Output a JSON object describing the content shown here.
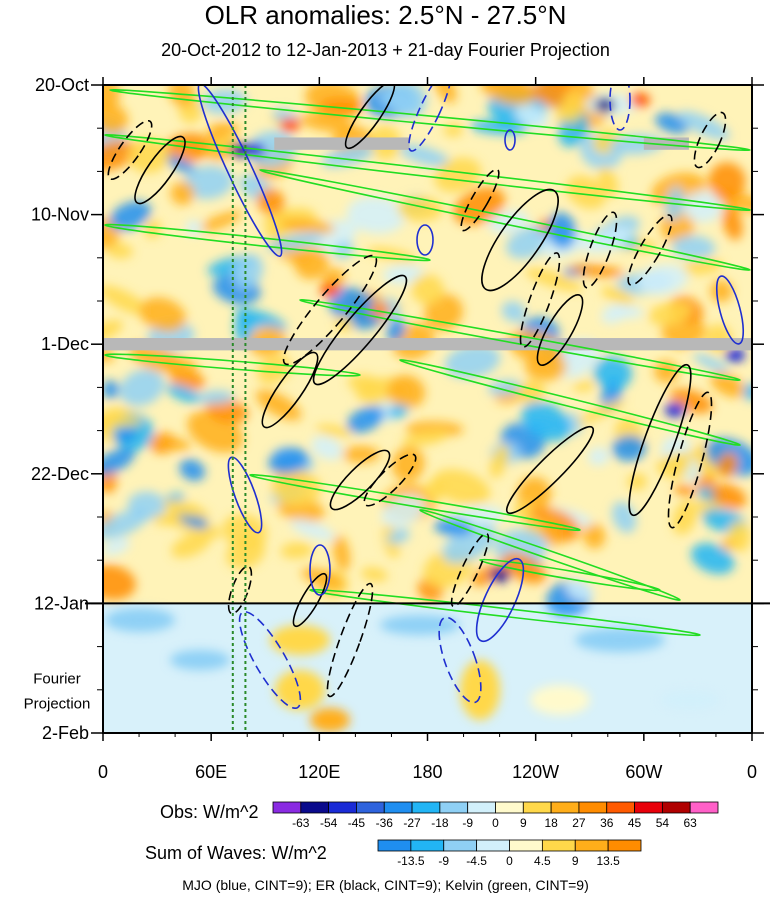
{
  "title": "OLR anomalies: 2.5°N - 27.5°N",
  "subtitle": "20-Oct-2012 to 12-Jan-2013 + 21-day Fourier Projection",
  "footer": "MJO (blue, CINT=9); ER (black, CINT=9); Kelvin (green, CINT=9)",
  "projection_label": [
    "Fourier",
    "Projection"
  ],
  "colors": {
    "mjo": "#1f2fd0",
    "er": "#000000",
    "kelvin": "#22dd22",
    "missing": "#b8b8b8",
    "dotted_lines": "#2a8a2a"
  },
  "chart_data": {
    "type": "heatmap",
    "description_kind": "Hovmoller longitude-time diagram",
    "xlabel": "",
    "ylabel": "",
    "x_ticks": [
      "0",
      "60E",
      "120E",
      "180",
      "120W",
      "60W",
      "0"
    ],
    "x_tick_values": [
      0,
      60,
      120,
      180,
      240,
      300,
      360
    ],
    "xlim": [
      0,
      360
    ],
    "y_ticks": [
      "20-Oct",
      "10-Nov",
      "1-Dec",
      "22-Dec",
      "12-Jan",
      "2-Feb"
    ],
    "y_tick_days": [
      0,
      21,
      42,
      63,
      84,
      105
    ],
    "ylim_days": [
      0,
      105
    ],
    "projection_start_day": 84,
    "dotted_vertical_lines_lon": [
      72,
      79
    ],
    "missing_data_bands": [
      {
        "day_start": 8.5,
        "day_end": 10.5,
        "lon_start": 95,
        "lon_end": 170
      },
      {
        "day_start": 8.5,
        "day_end": 10.5,
        "lon_start": 300,
        "lon_end": 325
      },
      {
        "day_start": 41,
        "day_end": 43,
        "lon_start": 0,
        "lon_end": 360
      }
    ],
    "obs_colorbar": {
      "label": "Obs: W/m^2",
      "levels": [
        "-63",
        "-54",
        "-45",
        "-36",
        "-27",
        "-18",
        "-9",
        "0",
        "9",
        "18",
        "27",
        "36",
        "45",
        "54",
        "63"
      ],
      "colors": [
        "#8a2be2",
        "#0a0a8c",
        "#1a2bd6",
        "#2e63dd",
        "#1f8ef0",
        "#22b5f5",
        "#8fd0f5",
        "#d2f0fb",
        "#fffacc",
        "#ffd84a",
        "#ffae1a",
        "#ff8c00",
        "#ff5a00",
        "#e8000a",
        "#b00000",
        "#ff60c8"
      ]
    },
    "waves_colorbar": {
      "label": "Sum of Waves: W/m^2",
      "levels": [
        "-13.5",
        "-9",
        "-4.5",
        "0",
        "4.5",
        "9",
        "13.5"
      ],
      "colors": [
        "#1f8ef0",
        "#22b5f5",
        "#8fd0f5",
        "#d2f0fb",
        "#fffacc",
        "#ffd84a",
        "#ffae1a",
        "#ff8c00"
      ]
    }
  }
}
